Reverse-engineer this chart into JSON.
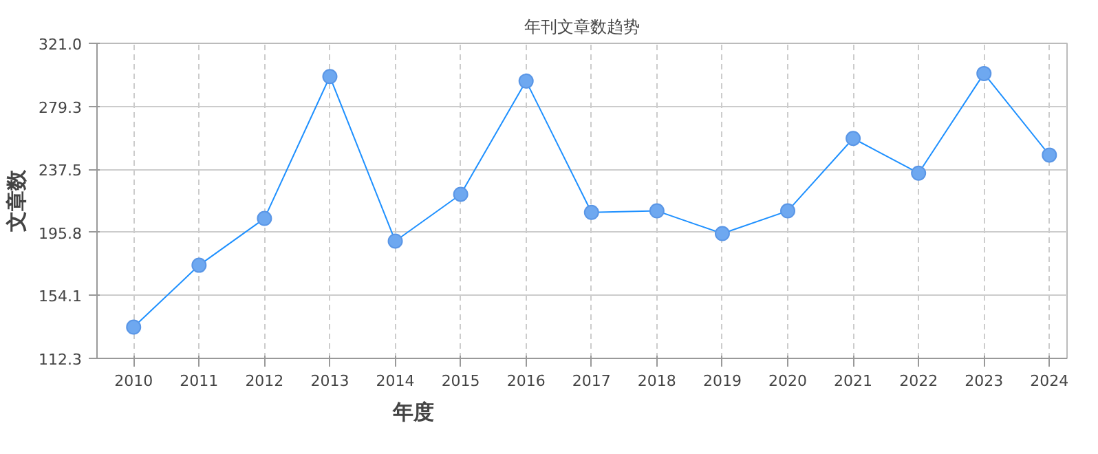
{
  "chart_data": {
    "type": "line",
    "title": "年刊文章数趋势",
    "xlabel": "年度",
    "ylabel": "文章数",
    "categories": [
      "2010",
      "2011",
      "2012",
      "2013",
      "2014",
      "2015",
      "2016",
      "2017",
      "2018",
      "2019",
      "2020",
      "2021",
      "2022",
      "2023",
      "2024"
    ],
    "series": [
      {
        "color": "#1e90ff",
        "values": [
          133,
          174,
          205,
          299,
          190,
          221,
          296,
          209,
          210,
          195,
          210,
          258,
          235,
          301,
          247
        ]
      }
    ],
    "ylim": [
      112.3,
      321.0
    ],
    "yticks": [
      112.3,
      154.1,
      195.8,
      237.5,
      279.3,
      {
        "value": 321,
        "label": "321.0"
      }
    ],
    "grid": true,
    "marker": "circle",
    "line_style": "solid"
  }
}
